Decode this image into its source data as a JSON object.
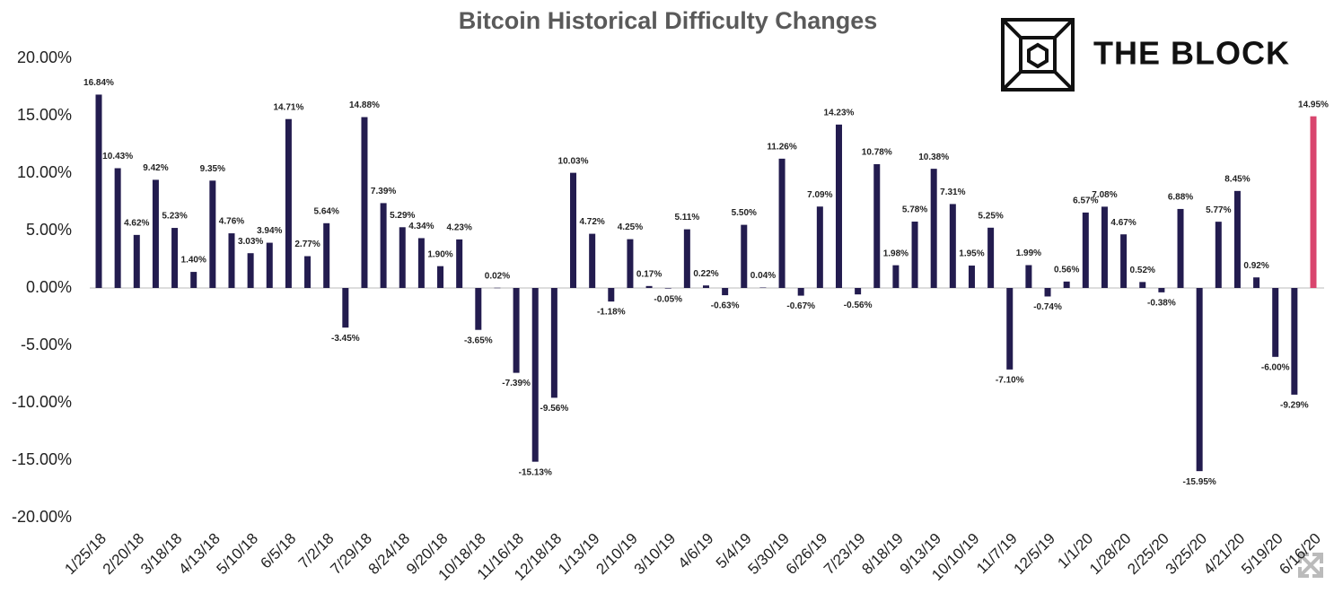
{
  "chart_data": {
    "type": "bar",
    "title": "Bitcoin Historical Difficulty Changes",
    "logo": "THE BLOCK",
    "categories": [
      "1/25/18",
      null,
      "2/20/18",
      null,
      "3/18/18",
      null,
      "4/13/18",
      null,
      "5/10/18",
      null,
      "6/5/18",
      null,
      "7/2/18",
      null,
      "7/29/18",
      null,
      "8/24/18",
      null,
      "9/20/18",
      null,
      "10/18/18",
      null,
      "11/16/18",
      null,
      "12/18/18",
      null,
      "1/13/19",
      null,
      "2/10/19",
      null,
      "3/10/19",
      null,
      "4/6/19",
      null,
      "5/4/19",
      null,
      "5/30/19",
      null,
      "6/26/19",
      null,
      "7/23/19",
      null,
      "8/18/19",
      null,
      "9/13/19",
      null,
      "10/10/19",
      null,
      "11/7/19",
      null,
      "12/5/19",
      null,
      "1/1/20",
      null,
      "1/28/20",
      null,
      "2/25/20",
      null,
      "3/25/20",
      null,
      "4/21/20",
      null,
      "5/19/20",
      null,
      "6/16/20"
    ],
    "values": [
      16.84,
      10.43,
      4.62,
      9.42,
      5.23,
      1.4,
      9.35,
      4.76,
      3.03,
      3.94,
      14.71,
      2.77,
      5.64,
      -3.45,
      14.88,
      7.39,
      5.29,
      4.34,
      1.9,
      4.23,
      -3.65,
      0.02,
      -7.39,
      -15.13,
      -9.56,
      10.03,
      4.72,
      -1.18,
      4.25,
      0.17,
      -0.05,
      5.11,
      0.22,
      -0.63,
      5.5,
      0.04,
      11.26,
      -0.67,
      7.09,
      14.23,
      -0.56,
      10.78,
      1.98,
      5.78,
      10.38,
      7.31,
      1.95,
      5.25,
      -7.1,
      1.99,
      -0.74,
      0.56,
      6.57,
      7.08,
      4.67,
      0.52,
      -0.38,
      6.88,
      -15.95,
      5.77,
      8.45,
      0.92,
      -6.0,
      -9.29,
      14.95
    ],
    "value_labels": [
      "16.84%",
      "10.43%",
      "4.62%",
      "9.42%",
      "5.23%",
      "1.40%",
      "9.35%",
      "4.76%",
      "3.03%",
      "3.94%",
      "14.71%",
      "2.77%",
      "5.64%",
      "-3.45%",
      "14.88%",
      "7.39%",
      "5.29%",
      "4.34%",
      "1.90%",
      "4.23%",
      "-3.65%",
      "0.02%",
      "-7.39%",
      "-15.13%",
      "-9.56%",
      "10.03%",
      "4.72%",
      "-1.18%",
      "4.25%",
      "0.17%",
      "-0.05%",
      "5.11%",
      "0.22%",
      "-0.63%",
      "5.50%",
      "0.04%",
      "11.26%",
      "-0.67%",
      "7.09%",
      "14.23%",
      "-0.56%",
      "10.78%",
      "1.98%",
      "5.78%",
      "10.38%",
      "7.31%",
      "1.95%",
      "5.25%",
      "-7.10%",
      "1.99%",
      "-0.74%",
      "0.56%",
      "6.57%",
      "7.08%",
      "4.67%",
      "0.52%",
      "-0.38%",
      "6.88%",
      "-15.95%",
      "5.77%",
      "8.45%",
      "0.92%",
      "-6.00%",
      "-9.29%",
      "14.95%"
    ],
    "colors": [
      "#231c4f",
      "#231c4f",
      "#231c4f",
      "#231c4f",
      "#231c4f",
      "#231c4f",
      "#231c4f",
      "#231c4f",
      "#231c4f",
      "#231c4f",
      "#231c4f",
      "#231c4f",
      "#231c4f",
      "#231c4f",
      "#231c4f",
      "#231c4f",
      "#231c4f",
      "#231c4f",
      "#231c4f",
      "#231c4f",
      "#231c4f",
      "#231c4f",
      "#231c4f",
      "#231c4f",
      "#231c4f",
      "#231c4f",
      "#231c4f",
      "#231c4f",
      "#231c4f",
      "#231c4f",
      "#231c4f",
      "#231c4f",
      "#231c4f",
      "#231c4f",
      "#231c4f",
      "#231c4f",
      "#231c4f",
      "#231c4f",
      "#231c4f",
      "#231c4f",
      "#231c4f",
      "#231c4f",
      "#231c4f",
      "#231c4f",
      "#231c4f",
      "#231c4f",
      "#231c4f",
      "#231c4f",
      "#231c4f",
      "#231c4f",
      "#231c4f",
      "#231c4f",
      "#231c4f",
      "#231c4f",
      "#231c4f",
      "#231c4f",
      "#231c4f",
      "#231c4f",
      "#231c4f",
      "#231c4f",
      "#231c4f",
      "#231c4f",
      "#231c4f",
      "#231c4f",
      "#d9466e"
    ],
    "ylim": [
      -20,
      20
    ],
    "yticks": [
      {
        "value": 20,
        "label": "20.00%"
      },
      {
        "value": 15,
        "label": "15.00%"
      },
      {
        "value": 10,
        "label": "10.00%"
      },
      {
        "value": 5,
        "label": "5.00%"
      },
      {
        "value": 0,
        "label": "0.00%"
      },
      {
        "value": -5,
        "label": "-5.00%"
      },
      {
        "value": -10,
        "label": "-10.00%"
      },
      {
        "value": -15,
        "label": "-15.00%"
      },
      {
        "value": -20,
        "label": "-20.00%"
      }
    ],
    "grid": false
  }
}
